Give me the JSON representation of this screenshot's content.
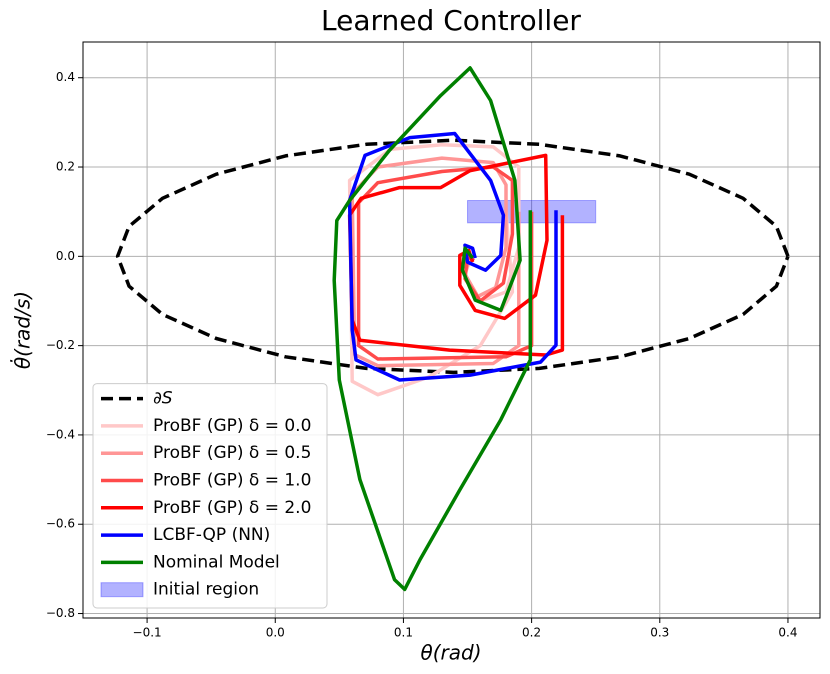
{
  "chart_data": {
    "type": "line",
    "title": "Learned Controller",
    "x_label": "θ(rad)",
    "y_label": "θ̇(rad/s)",
    "xlim": [
      -0.15,
      0.425
    ],
    "ylim": [
      -0.81,
      0.48
    ],
    "xticks": [
      {
        "value": -0.1,
        "label": "−0.1"
      },
      {
        "value": 0,
        "label": "0.0"
      },
      {
        "value": 0.1,
        "label": "0.1"
      },
      {
        "value": 0.2,
        "label": "0.2"
      },
      {
        "value": 0.3,
        "label": "0.3"
      },
      {
        "value": 0.4,
        "label": "0.4"
      }
    ],
    "yticks": [
      {
        "value": -0.8,
        "label": "−0.8"
      },
      {
        "value": -0.6,
        "label": "−0.6"
      },
      {
        "value": -0.4,
        "label": "−0.4"
      },
      {
        "value": -0.2,
        "label": "−0.2"
      },
      {
        "value": 0,
        "label": "0.0"
      },
      {
        "value": 0.2,
        "label": "0.2"
      },
      {
        "value": 0.4,
        "label": "0.4"
      }
    ],
    "grid": true,
    "legend": "lower left",
    "series": [
      {
        "name": "∂S",
        "color": "#000000",
        "linestyle": "dashed",
        "x": [
          0.4,
          0.391,
          0.365,
          0.323,
          0.269,
          0.206,
          0.139,
          0.071,
          0.008,
          -0.046,
          -0.088,
          -0.114,
          -0.123,
          -0.114,
          -0.088,
          -0.046,
          0.008,
          0.071,
          0.139,
          0.206,
          0.269,
          0.323,
          0.365,
          0.391,
          0.4
        ],
        "values": [
          0,
          0.067,
          0.13,
          0.184,
          0.225,
          0.251,
          0.26,
          0.251,
          0.225,
          0.184,
          0.13,
          0.067,
          0,
          -0.067,
          -0.13,
          -0.184,
          -0.225,
          -0.251,
          -0.26,
          -0.251,
          -0.225,
          -0.184,
          -0.13,
          -0.067,
          0
        ]
      },
      {
        "name": "ProBF (GP) δ = 0.0",
        "color": "#ffc8c8",
        "x": [
          0.18,
          0.185,
          0.16,
          0.12,
          0.08,
          0.06,
          0.058,
          0.09,
          0.13,
          0.17,
          0.19,
          0.19,
          0.18,
          0.16,
          0.148,
          0.153
        ],
        "values": [
          0.1,
          -0.08,
          -0.2,
          -0.27,
          -0.31,
          -0.28,
          0.17,
          0.24,
          0.25,
          0.245,
          0.2,
          0.02,
          -0.08,
          -0.1,
          -0.04,
          0.0
        ]
      },
      {
        "name": "ProBF (GP) δ = 0.5",
        "color": "#ff9696",
        "x": [
          0.19,
          0.19,
          0.17,
          0.08,
          0.062,
          0.06,
          0.08,
          0.13,
          0.17,
          0.18,
          0.18,
          0.172,
          0.158,
          0.148,
          0.152
        ],
        "values": [
          0.1,
          -0.2,
          -0.24,
          -0.245,
          -0.22,
          0.14,
          0.2,
          0.22,
          0.21,
          0.16,
          0.02,
          -0.07,
          -0.09,
          -0.04,
          0.0
        ]
      },
      {
        "name": "ProBF (GP) δ = 1.0",
        "color": "#ff4b4b",
        "x": [
          0.2,
          0.2,
          0.18,
          0.08,
          0.065,
          0.065,
          0.08,
          0.13,
          0.17,
          0.185,
          0.185,
          0.178,
          0.16,
          0.148,
          0.15,
          0.155
        ],
        "values": [
          0.1,
          -0.2,
          -0.225,
          -0.23,
          -0.2,
          0.12,
          0.165,
          0.19,
          0.2,
          0.17,
          0.05,
          -0.06,
          -0.1,
          -0.05,
          0.0,
          -0.01
        ]
      },
      {
        "name": "ProBF (GP) δ = 2.0",
        "color": "#ff0000",
        "x": [
          0.224,
          0.224,
          0.211,
          0.136,
          0.066,
          0.06,
          0.058,
          0.067,
          0.097,
          0.129,
          0.152,
          0.211,
          0.212,
          0.203,
          0.179,
          0.156,
          0.144,
          0.144,
          0.151,
          0.154
        ],
        "values": [
          0.092,
          -0.21,
          -0.221,
          -0.21,
          -0.188,
          -0.143,
          0.092,
          0.13,
          0.154,
          0.154,
          0.192,
          0.226,
          0.036,
          -0.087,
          -0.139,
          -0.121,
          -0.065,
          0.002,
          0.013,
          -0.013
        ]
      },
      {
        "name": "LCBF-QP (NN)",
        "color": "#0000ff",
        "x": [
          0.219,
          0.219,
          0.207,
          0.152,
          0.097,
          0.063,
          0.06,
          0.058,
          0.07,
          0.105,
          0.14,
          0.168,
          0.178,
          0.176,
          0.164,
          0.15,
          0.148,
          0.154,
          0.156
        ],
        "values": [
          0.103,
          -0.199,
          -0.237,
          -0.266,
          -0.277,
          -0.232,
          -0.165,
          0.125,
          0.226,
          0.266,
          0.275,
          0.17,
          0.092,
          0.002,
          -0.031,
          -0.013,
          0.025,
          0.018,
          -0.004
        ]
      },
      {
        "name": "Nominal Model",
        "color": "#008000",
        "x": [
          0.199,
          0.199,
          0.176,
          0.144,
          0.113,
          0.101,
          0.093,
          0.066,
          0.05,
          0.046,
          0.048,
          0.058,
          0.089,
          0.129,
          0.152,
          0.168,
          0.187,
          0.191,
          0.176,
          0.156,
          0.146,
          0.148,
          0.154
        ],
        "values": [
          0.103,
          -0.232,
          -0.366,
          -0.523,
          -0.679,
          -0.746,
          -0.724,
          -0.5,
          -0.277,
          -0.054,
          0.08,
          0.125,
          0.237,
          0.36,
          0.422,
          0.349,
          0.17,
          -0.009,
          -0.121,
          -0.098,
          -0.031,
          0.018,
          -0.004
        ]
      }
    ],
    "region": {
      "name": "Initial region",
      "color": "#0000ff",
      "alpha": 0.3,
      "x": [
        0.15,
        0.25
      ],
      "y": [
        0.075,
        0.125
      ]
    }
  }
}
